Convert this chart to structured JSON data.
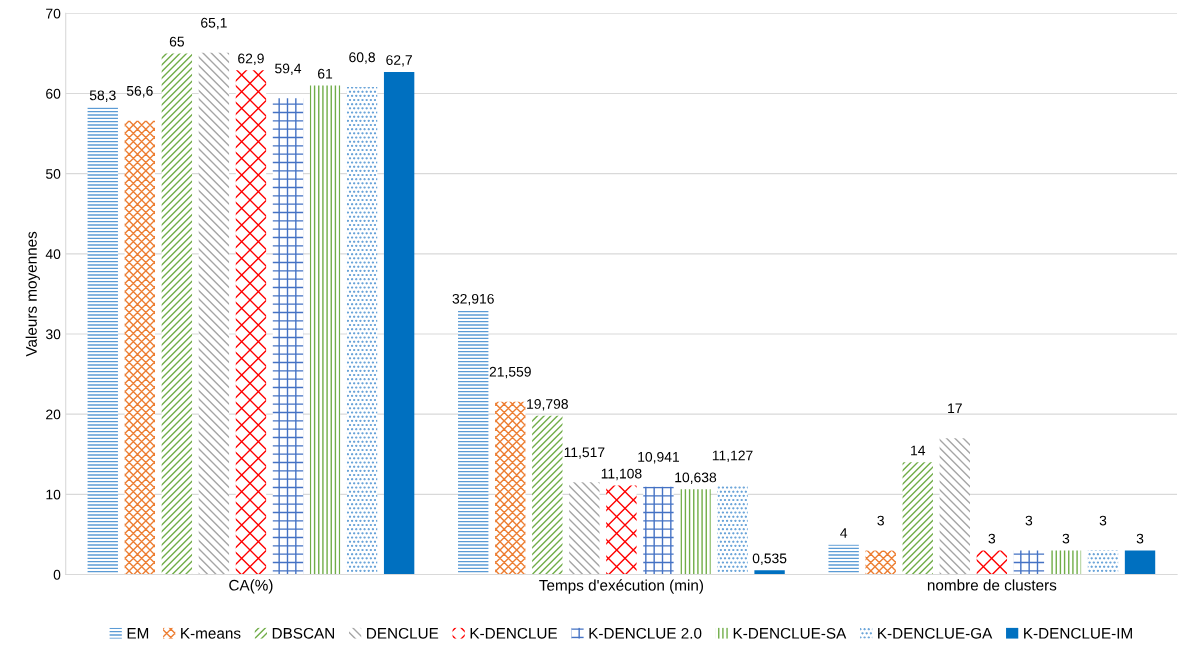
{
  "chart_data": {
    "type": "bar",
    "ylabel": "Valeurs moyennes",
    "categories": [
      "CA(%)",
      "Temps d'exécution (min)",
      "nombre de clusters"
    ],
    "series": [
      {
        "name": "EM",
        "color": "#5b9bd5",
        "values": [
          58.3,
          32.916,
          3.7
        ],
        "value_labels": [
          "58,3",
          "32,916",
          "4"
        ]
      },
      {
        "name": "K-means",
        "color": "#ed7d31",
        "values": [
          56.6,
          21.559,
          3
        ],
        "value_labels": [
          "56,6",
          "21,559",
          "3"
        ]
      },
      {
        "name": "DBSCAN",
        "color": "#70ad47",
        "values": [
          65,
          19.798,
          14
        ],
        "value_labels": [
          "65",
          "19,798",
          "14"
        ]
      },
      {
        "name": "DENCLUE",
        "color": "#a5a5a5",
        "values": [
          65.1,
          11.517,
          17
        ],
        "value_labels": [
          "65,1",
          "11,517",
          "17"
        ]
      },
      {
        "name": "K-DENCLUE",
        "color": "#ff0000",
        "values": [
          62.9,
          11.108,
          3
        ],
        "value_labels": [
          "62,9",
          "11,108",
          "3"
        ]
      },
      {
        "name": "K-DENCLUE 2.0",
        "color": "#4472c4",
        "values": [
          59.4,
          10.941,
          3
        ],
        "value_labels": [
          "59,4",
          "10,941",
          "3"
        ]
      },
      {
        "name": "K-DENCLUE-SA",
        "color": "#70ad47",
        "values": [
          61,
          10.638,
          3
        ],
        "value_labels": [
          "61",
          "10,638",
          "3"
        ]
      },
      {
        "name": "K-DENCLUE-GA",
        "color": "#5b9bd5",
        "values": [
          60.8,
          11.127,
          3
        ],
        "value_labels": [
          "60,8",
          "11,127",
          "3"
        ]
      },
      {
        "name": "K-DENCLUE-IM",
        "color": "#0070c0",
        "values": [
          62.7,
          0.535,
          3
        ],
        "value_labels": [
          "62,7",
          "0,535",
          "3"
        ]
      }
    ],
    "ylim": [
      0,
      70
    ],
    "yticks": [
      0,
      10,
      20,
      30,
      40,
      50,
      60,
      70
    ],
    "grid": "y",
    "legend": "bottom"
  }
}
